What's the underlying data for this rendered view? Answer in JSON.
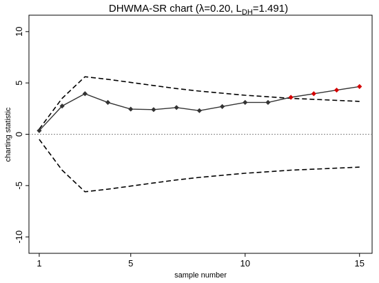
{
  "chart_data": {
    "type": "line",
    "title": {
      "prefix": "DHWMA-SR chart (λ=0.20, L",
      "subscript": "DH",
      "suffix": "=1.491)"
    },
    "xlabel": "sample number",
    "ylabel": "charting statistic",
    "xlim": [
      0.55,
      15.55
    ],
    "ylim": [
      -11.6,
      11.6
    ],
    "xticks": [
      1,
      5,
      10,
      15
    ],
    "yticks": [
      -10,
      -5,
      0,
      5,
      10
    ],
    "grid": false,
    "center_line": 0,
    "colors": {
      "statistic": "#333333",
      "out_of_control": "#d40000",
      "limits": "#000000",
      "center": "#888888"
    },
    "series": [
      {
        "role": "statistic",
        "x": [
          1,
          2,
          3,
          4,
          5,
          6,
          7,
          8,
          9,
          10,
          11,
          12,
          13,
          14,
          15
        ],
        "values": [
          0.35,
          2.75,
          3.95,
          3.1,
          2.45,
          2.4,
          2.6,
          2.3,
          2.7,
          3.1,
          3.1,
          3.6,
          3.95,
          4.3,
          4.65
        ],
        "out_of_control": [
          false,
          false,
          false,
          false,
          false,
          false,
          false,
          false,
          false,
          false,
          false,
          true,
          true,
          true,
          true
        ]
      },
      {
        "role": "upper_limit",
        "x": [
          1,
          2,
          3,
          4,
          5,
          6,
          7,
          8,
          9,
          10,
          11,
          12,
          13,
          14,
          15
        ],
        "values": [
          0.5,
          3.5,
          5.6,
          5.35,
          5.05,
          4.75,
          4.45,
          4.2,
          4.0,
          3.8,
          3.65,
          3.5,
          3.4,
          3.3,
          3.2
        ]
      },
      {
        "role": "lower_limit",
        "x": [
          1,
          2,
          3,
          4,
          5,
          6,
          7,
          8,
          9,
          10,
          11,
          12,
          13,
          14,
          15
        ],
        "values": [
          -0.5,
          -3.5,
          -5.6,
          -5.35,
          -5.05,
          -4.75,
          -4.45,
          -4.2,
          -4.0,
          -3.8,
          -3.65,
          -3.5,
          -3.4,
          -3.3,
          -3.2
        ]
      }
    ]
  }
}
